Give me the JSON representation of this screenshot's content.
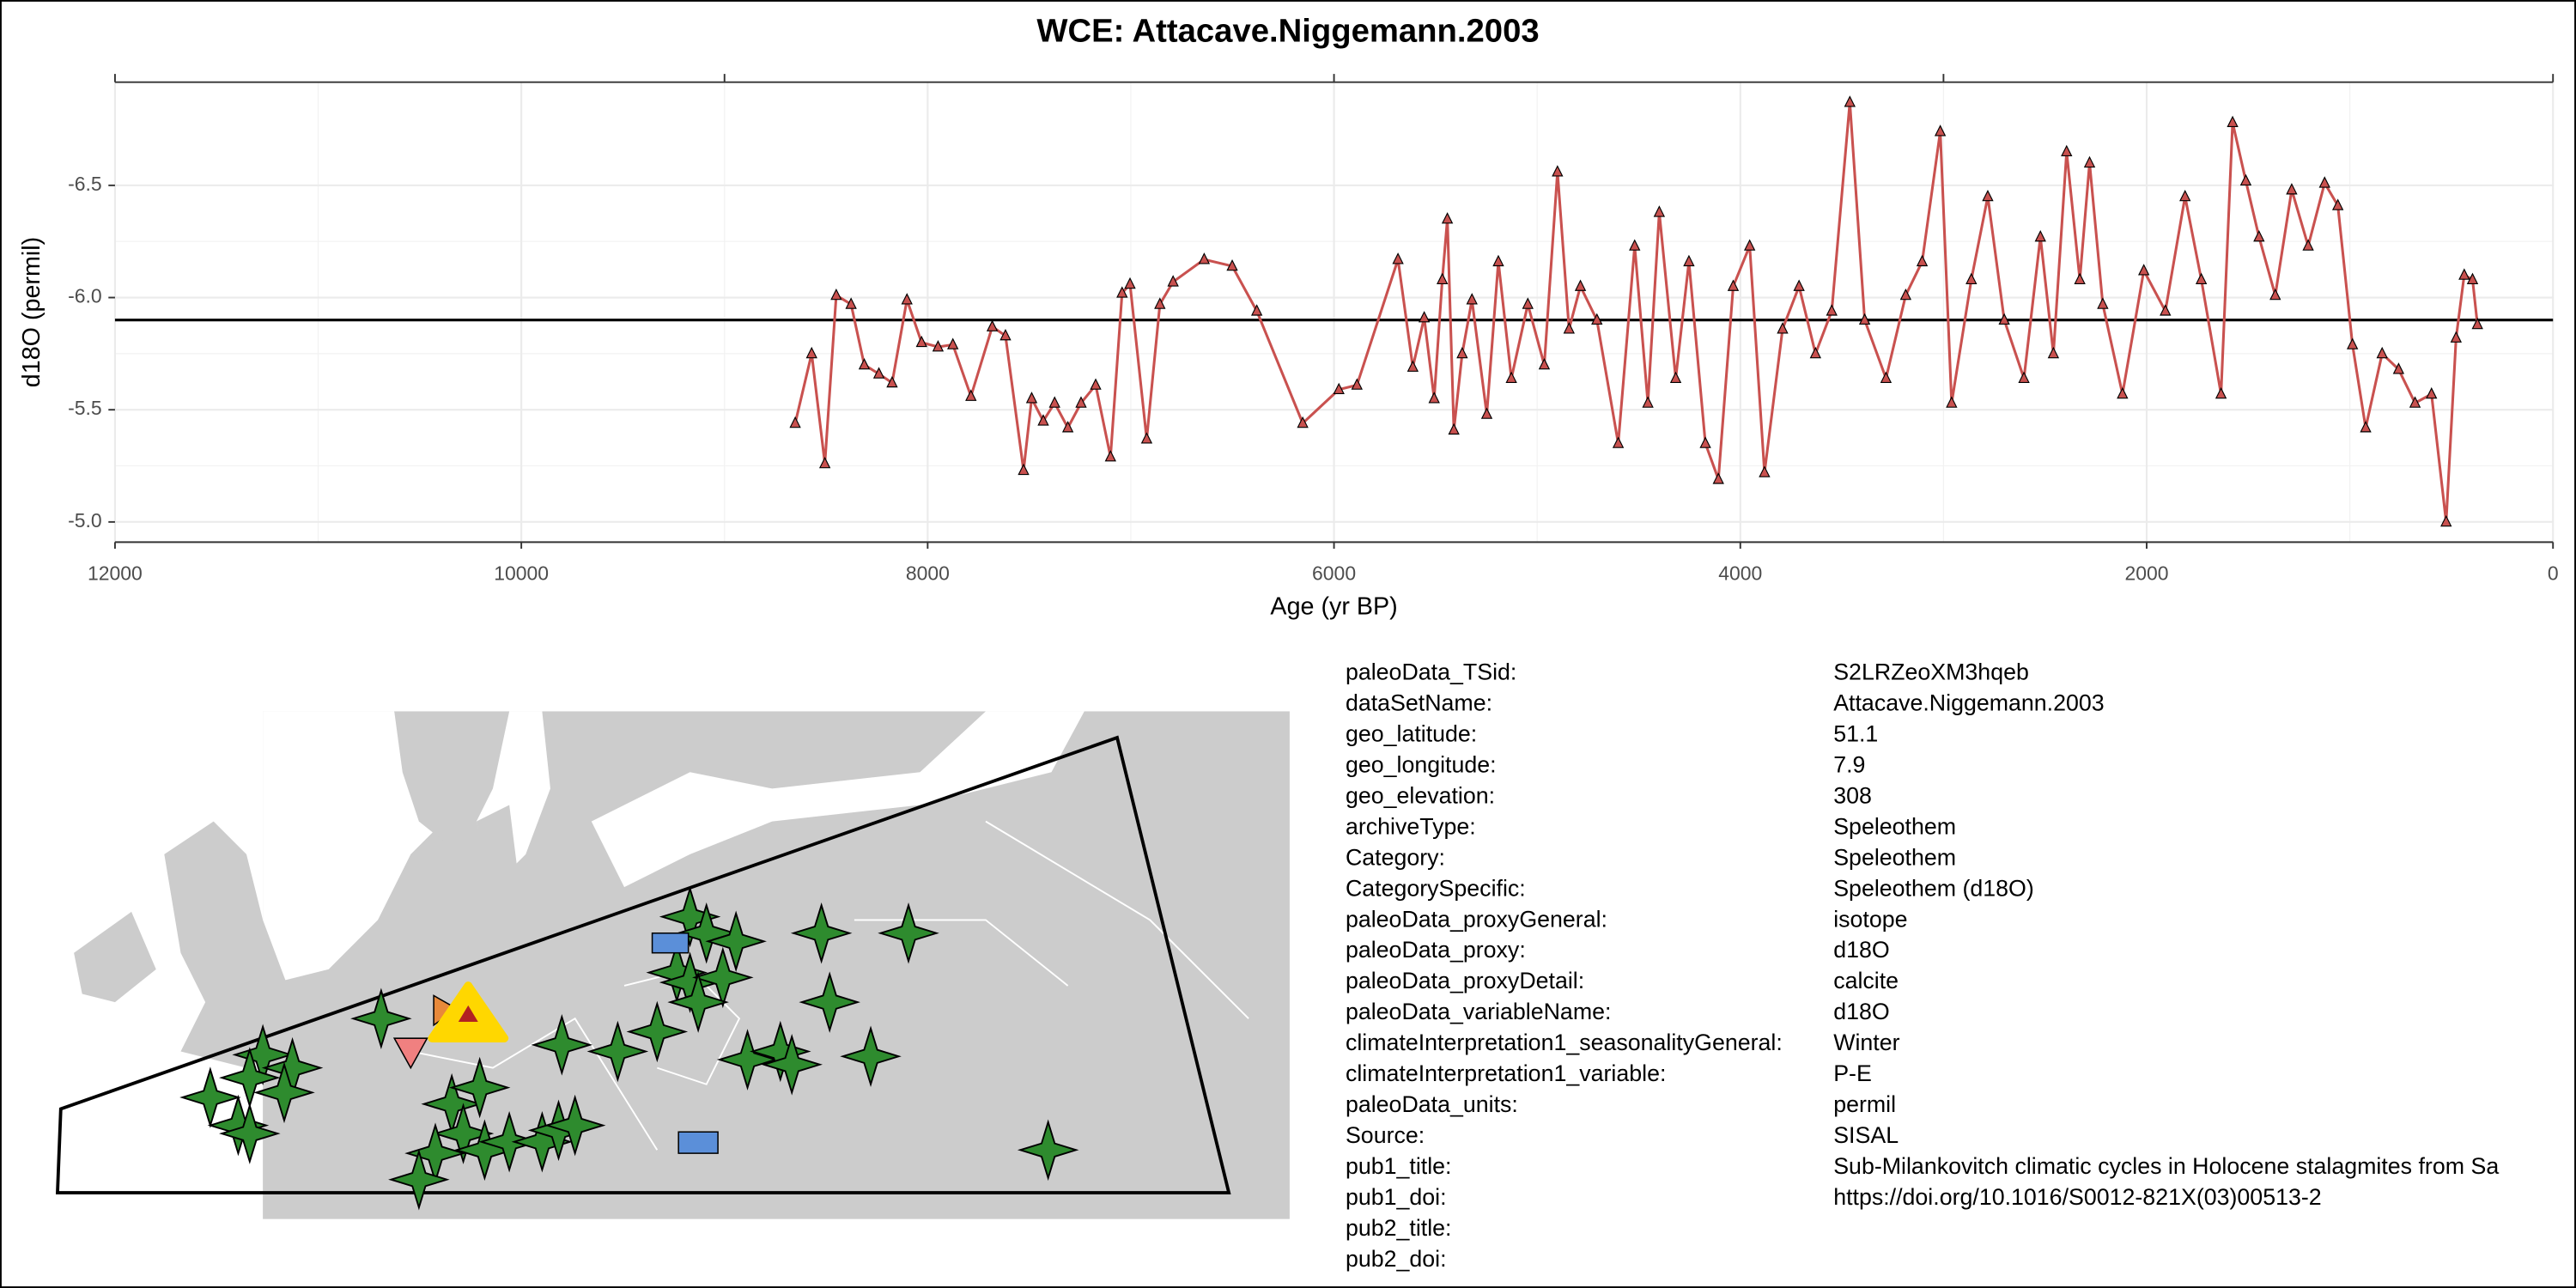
{
  "chart_data": {
    "type": "line",
    "title": "WCE: Attacave.Niggemann.2003",
    "x_label": "Age (yr BP)",
    "y_label": "d18O (permil)",
    "x": [
      8652,
      8571,
      8506,
      8450,
      8377,
      8312,
      8240,
      8175,
      8102,
      8030,
      7949,
      7876,
      7787,
      7682,
      7617,
      7528,
      7488,
      7431,
      7375,
      7310,
      7245,
      7173,
      7100,
      7043,
      7004,
      6922,
      6857,
      6792,
      6639,
      6501,
      6380,
      6154,
      5976,
      5887,
      5685,
      5612,
      5556,
      5507,
      5467,
      5442,
      5410,
      5369,
      5321,
      5248,
      5191,
      5127,
      5046,
      4965,
      4900,
      4843,
      4787,
      4706,
      4601,
      4520,
      4455,
      4399,
      4318,
      4253,
      4172,
      4108,
      4035,
      3954,
      3881,
      3792,
      3711,
      3630,
      3550,
      3461,
      3388,
      3283,
      3186,
      3105,
      3016,
      2960,
      2863,
      2782,
      2701,
      2604,
      2523,
      2459,
      2394,
      2329,
      2281,
      2216,
      2119,
      2014,
      1908,
      1811,
      1731,
      1634,
      1577,
      1512,
      1447,
      1367,
      1286,
      1205,
      1124,
      1059,
      987,
      922,
      841,
      760,
      679,
      598,
      526,
      477,
      437,
      396,
      372
    ],
    "series": [
      {
        "name": "d18O",
        "color": "#c9514f",
        "values": [
          -5.44,
          -5.75,
          -5.26,
          -6.01,
          -5.97,
          -5.7,
          -5.66,
          -5.62,
          -5.99,
          -5.8,
          -5.78,
          -5.79,
          -5.56,
          -5.87,
          -5.83,
          -5.23,
          -5.55,
          -5.45,
          -5.53,
          -5.42,
          -5.53,
          -5.61,
          -5.29,
          -6.02,
          -6.06,
          -5.37,
          -5.97,
          -6.07,
          -6.17,
          -6.14,
          -5.94,
          -5.44,
          -5.59,
          -5.61,
          -6.17,
          -5.69,
          -5.91,
          -5.55,
          -6.08,
          -6.35,
          -5.41,
          -5.75,
          -5.99,
          -5.48,
          -6.16,
          -5.64,
          -5.97,
          -5.7,
          -6.56,
          -5.86,
          -6.05,
          -5.9,
          -5.35,
          -6.23,
          -5.53,
          -6.38,
          -5.64,
          -6.16,
          -5.35,
          -5.19,
          -6.05,
          -6.23,
          -5.22,
          -5.86,
          -6.05,
          -5.75,
          -5.94,
          -6.87,
          -5.9,
          -5.64,
          -6.01,
          -6.16,
          -6.74,
          -5.53,
          -6.08,
          -6.45,
          -5.9,
          -5.64,
          -6.27,
          -5.75,
          -6.65,
          -6.08,
          -6.6,
          -5.97,
          -5.57,
          -6.12,
          -5.94,
          -6.45,
          -6.08,
          -5.57,
          -6.78,
          -6.52,
          -6.27,
          -6.01,
          -6.48,
          -6.23,
          -6.51,
          -6.41,
          -5.79,
          -5.42,
          -5.75,
          -5.68,
          -5.53,
          -5.57,
          -5.0,
          -5.82,
          -6.1,
          -6.08,
          -5.88
        ]
      }
    ],
    "mean_line": -5.9,
    "xlim": [
      12000,
      0
    ],
    "xticks": [
      12000,
      10000,
      8000,
      6000,
      4000,
      2000,
      0
    ],
    "top_xticks": [
      12000,
      9000,
      6000,
      3000,
      0
    ],
    "ylim": [
      -4.91,
      -6.96
    ],
    "yticks": [
      {
        "value": -6.5,
        "label": "-6.5"
      },
      {
        "value": -6,
        "label": "-6.0"
      },
      -5.5,
      {
        "value": -5,
        "label": "-5.0"
      }
    ],
    "grid": true
  },
  "metadata": [
    {
      "key": "paleoData_TSid:",
      "value": "S2LRZeoXM3hqeb"
    },
    {
      "key": "dataSetName:",
      "value": "Attacave.Niggemann.2003"
    },
    {
      "key": "geo_latitude:",
      "value": "51.1"
    },
    {
      "key": "geo_longitude:",
      "value": "7.9"
    },
    {
      "key": "geo_elevation:",
      "value": "308"
    },
    {
      "key": "archiveType:",
      "value": "Speleothem"
    },
    {
      "key": "Category:",
      "value": "Speleothem"
    },
    {
      "key": "CategorySpecific:",
      "value": "Speleothem (d18O)"
    },
    {
      "key": "paleoData_proxyGeneral:",
      "value": "isotope"
    },
    {
      "key": "paleoData_proxy:",
      "value": "d18O"
    },
    {
      "key": "paleoData_proxyDetail:",
      "value": "calcite"
    },
    {
      "key": "paleoData_variableName:",
      "value": "d18O"
    },
    {
      "key": "climateInterpretation1_seasonalityGeneral:",
      "value": "Winter"
    },
    {
      "key": "climateInterpretation1_variable:",
      "value": "P-E"
    },
    {
      "key": "paleoData_units:",
      "value": "permil"
    },
    {
      "key": "Source:",
      "value": "SISAL"
    },
    {
      "key": "pub1_title:",
      "value": "Sub-Milankovitch climatic cycles in Holocene stalagmites from Sa"
    },
    {
      "key": "pub1_doi:",
      "value": "https://doi.org/10.1016/S0012-821X(03)00513-2"
    },
    {
      "key": "pub2_title:"
    },
    {
      "key": "pub2_doi:"
    }
  ]
}
